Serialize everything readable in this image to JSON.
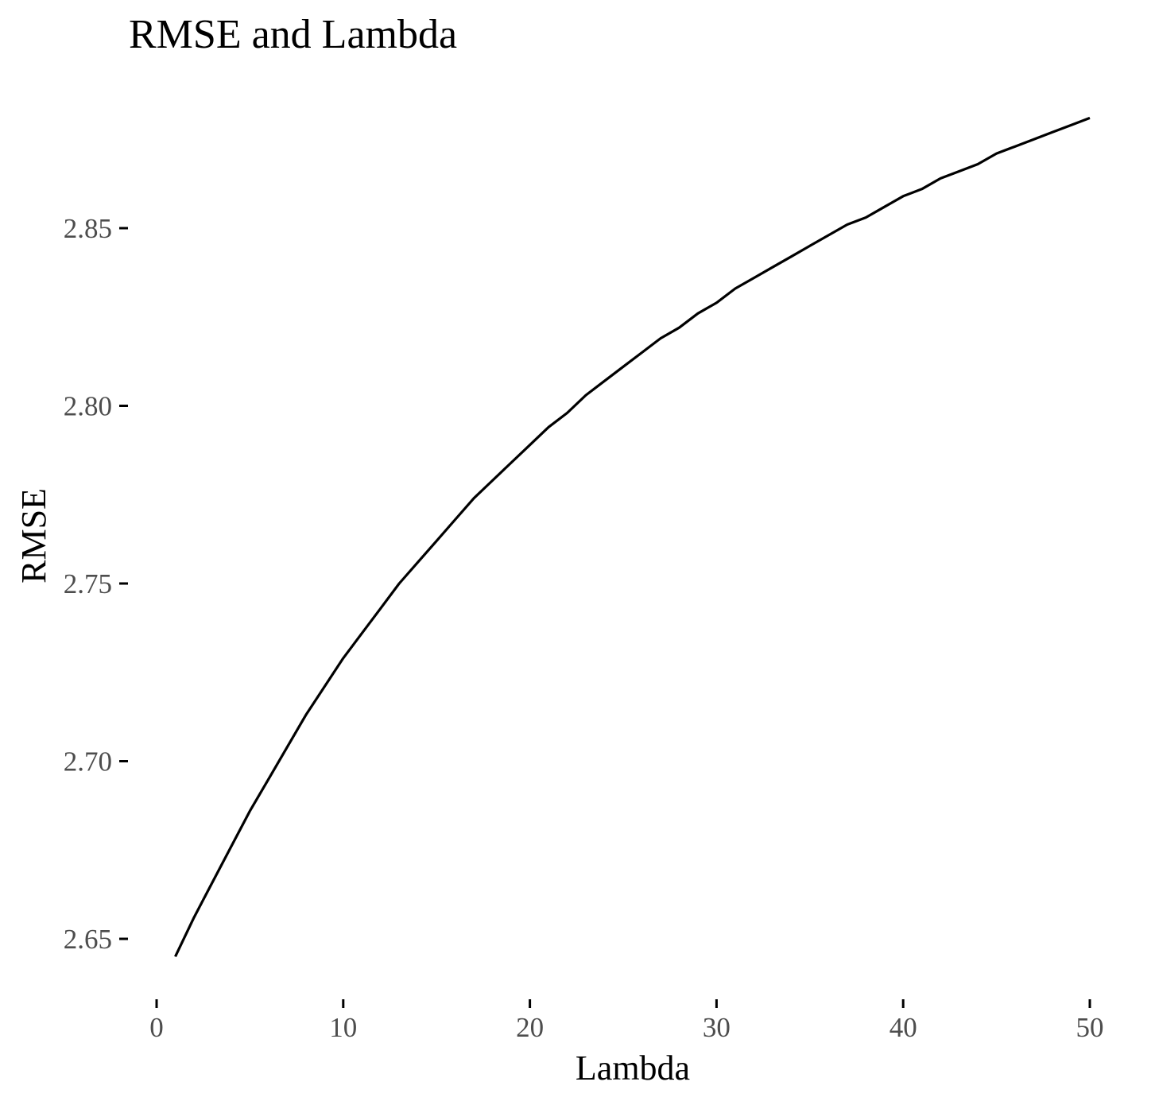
{
  "chart_data": {
    "type": "line",
    "title": "RMSE and Lambda",
    "xlabel": "Lambda",
    "ylabel": "RMSE",
    "xlim": [
      0,
      50
    ],
    "ylim": [
      2.635,
      2.885
    ],
    "grid": false,
    "legend": "none",
    "x_ticks": [
      0,
      10,
      20,
      30,
      40,
      50
    ],
    "x_tick_labels": [
      "0",
      "10",
      "20",
      "30",
      "40",
      "50"
    ],
    "y_ticks": [
      2.65,
      2.7,
      2.75,
      2.8,
      2.85
    ],
    "y_tick_labels": [
      "2.65",
      "2.70",
      "2.75",
      "2.80",
      "2.85"
    ],
    "series": [
      {
        "color": "#000000",
        "x": [
          1,
          2,
          3,
          4,
          5,
          6,
          7,
          8,
          9,
          10,
          11,
          12,
          13,
          14,
          15,
          16,
          17,
          18,
          19,
          20,
          21,
          22,
          23,
          24,
          25,
          26,
          27,
          28,
          29,
          30,
          31,
          32,
          33,
          34,
          35,
          36,
          37,
          38,
          39,
          40,
          41,
          42,
          43,
          44,
          45,
          46,
          47,
          48,
          49,
          50
        ],
        "y": [
          2.645,
          2.656,
          2.666,
          2.676,
          2.686,
          2.695,
          2.704,
          2.713,
          2.721,
          2.729,
          2.736,
          2.743,
          2.75,
          2.756,
          2.762,
          2.768,
          2.774,
          2.779,
          2.784,
          2.789,
          2.794,
          2.798,
          2.803,
          2.807,
          2.811,
          2.815,
          2.819,
          2.822,
          2.826,
          2.829,
          2.833,
          2.836,
          2.839,
          2.842,
          2.845,
          2.848,
          2.851,
          2.853,
          2.856,
          2.859,
          2.861,
          2.864,
          2.866,
          2.868,
          2.871,
          2.873,
          2.875,
          2.877,
          2.879,
          2.881
        ]
      }
    ]
  }
}
